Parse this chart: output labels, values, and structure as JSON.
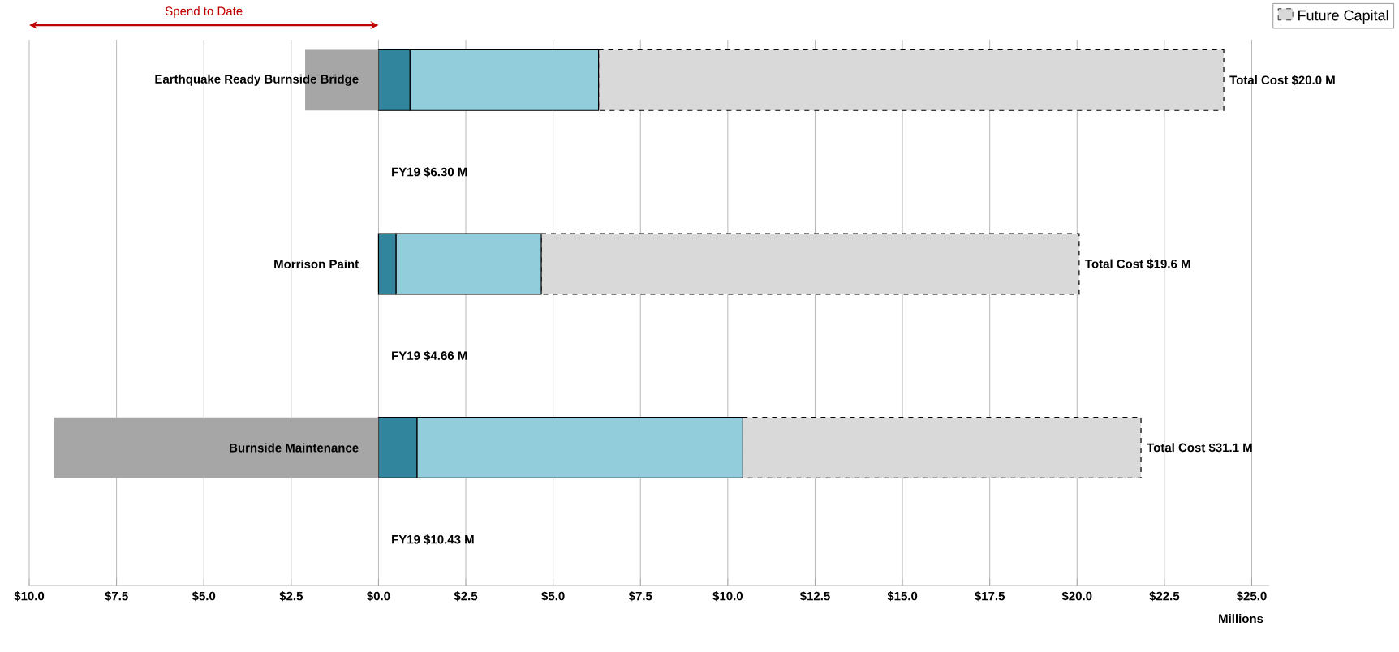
{
  "chart_data": {
    "type": "bar",
    "orientation": "horizontal",
    "stacked": true,
    "categories": [
      "Earthquake Ready Burnside Bridge",
      "Morrison Paint",
      "Burnside Maintenance"
    ],
    "series": [
      {
        "color": "#a6a6a6",
        "values": [
          -2.1,
          null,
          -9.3
        ]
      },
      {
        "color": "#31859c",
        "line_style": "solid",
        "values": [
          0.9,
          0.5,
          1.1
        ]
      },
      {
        "color": "#92cddc",
        "line_style": "solid",
        "values": [
          5.4,
          4.16,
          9.33
        ]
      },
      {
        "name": "Future Capital",
        "color": "#d9d9d9",
        "line_style": "dashed",
        "values": [
          17.9,
          15.4,
          11.4
        ]
      }
    ],
    "totals": [
      "Total Cost $20.0 M",
      "Total Cost $19.6 M",
      "Total Cost $31.1 M"
    ],
    "xlim": [
      -10,
      25.5
    ],
    "xticks": [
      {
        "value": -10,
        "label": "$10.0"
      },
      {
        "value": -7.5,
        "label": "$7.5"
      },
      {
        "value": -5,
        "label": "$5.0"
      },
      {
        "value": -2.5,
        "label": "$2.5"
      },
      {
        "value": 0,
        "label": "$0.0"
      },
      {
        "value": 2.5,
        "label": "$2.5"
      },
      {
        "value": 5,
        "label": "$5.0"
      },
      {
        "value": 7.5,
        "label": "$7.5"
      },
      {
        "value": 10,
        "label": "$10.0"
      },
      {
        "value": 12.5,
        "label": "$12.5"
      },
      {
        "value": 15,
        "label": "$15.0"
      },
      {
        "value": 17.5,
        "label": "$17.5"
      },
      {
        "value": 20,
        "label": "$20.0"
      },
      {
        "value": 22.5,
        "label": "$22.5"
      },
      {
        "value": 25,
        "label": "$25.0"
      }
    ],
    "xlabel": "Millions",
    "annotations": [
      "Spend to Date",
      "FY19 $6.30 M",
      "FY19 $4.66 M",
      "FY19 $10.43 M"
    ],
    "grid": "x",
    "legend": "top right"
  }
}
